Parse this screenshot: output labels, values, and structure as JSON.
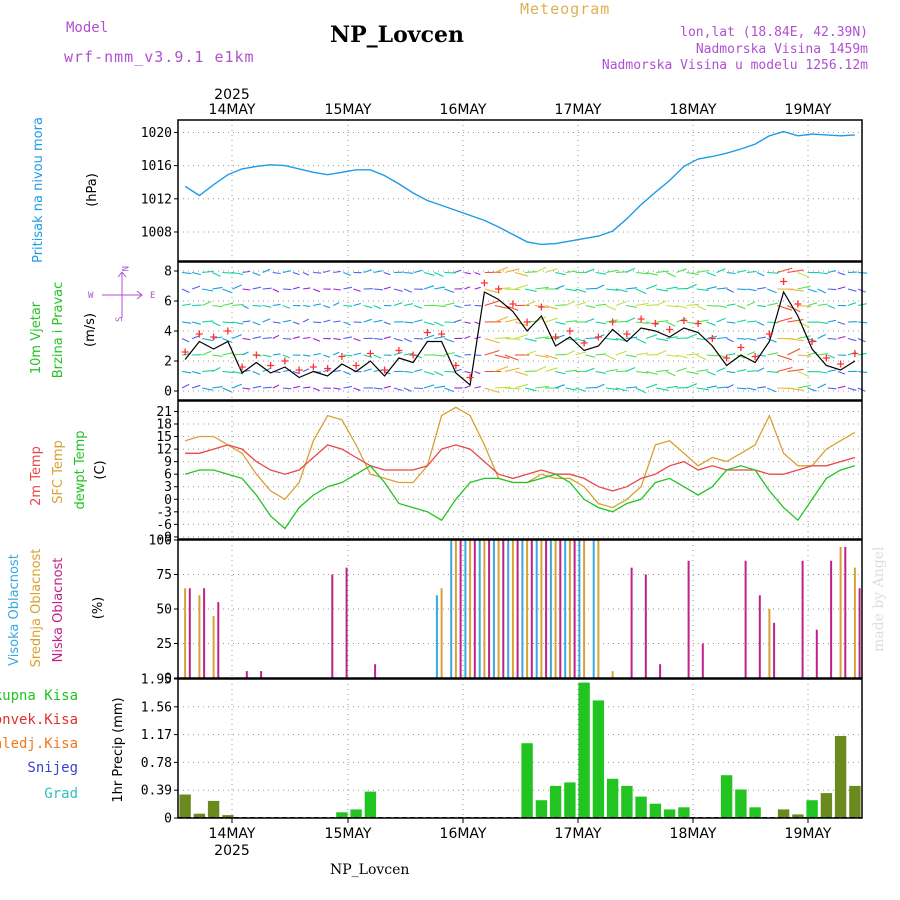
{
  "header": {
    "model_label": "Model",
    "model_name": "wrf-nmm_v3.9.1 e1km",
    "station": "NP_Lovcen",
    "meteogram": "Meteogram",
    "lonlat": "lon,lat (18.84E, 42.39N)",
    "altitude": "Nadmorska Visina 1459m",
    "model_altitude": "Nadmorska Visina u modelu 1256.12m",
    "footer_station": "NP_Lovcen",
    "credit": "made by Angel"
  },
  "colors": {
    "pressure": "#1e9be6",
    "wind_black": "#000000",
    "wind_red": "#ff3030",
    "t2m": "#e84848",
    "tsfc": "#d9a033",
    "dewpt": "#22c422",
    "cloud_high": "#3aa8e0",
    "cloud_mid": "#d9a033",
    "cloud_low": "#c0208a",
    "precip_total": "#22c422",
    "precip_conv": "#e03030",
    "precip_frz": "#f07820",
    "precip_snow": "#4040d0",
    "precip_grad": "#30c0c0",
    "purple": "#b050d0",
    "gold": "#e0b050",
    "grid": "#999999"
  },
  "chart_data": {
    "type": "line",
    "time_axis": {
      "year": "2025",
      "day_labels": [
        "14MAY",
        "15MAY",
        "16MAY",
        "17MAY",
        "18MAY",
        "19MAY"
      ],
      "start": "2025-05-13 13:00",
      "end": "2025-05-19 13:00"
    },
    "panels": [
      {
        "id": "pressure",
        "type": "line",
        "ylabel": [
          "Pritisak na nivou mora",
          "(hPa)"
        ],
        "yticks": [
          1008,
          1012,
          1016,
          1020
        ],
        "ylim": [
          1004.5,
          1021.5
        ],
        "series": [
          {
            "name": "Pritisak na nivou mora",
            "values": [
              1013.5,
              1012.4,
              1013.7,
              1014.9,
              1015.6,
              1015.9,
              1016.1,
              1016.0,
              1015.6,
              1015.2,
              1014.9,
              1015.2,
              1015.5,
              1015.5,
              1014.8,
              1013.8,
              1012.7,
              1011.8,
              1011.2,
              1010.6,
              1010.0,
              1009.4,
              1008.6,
              1007.7,
              1006.8,
              1006.5,
              1006.6,
              1006.9,
              1007.2,
              1007.5,
              1008.1,
              1009.6,
              1011.3,
              1012.8,
              1014.2,
              1015.9,
              1016.8,
              1017.1,
              1017.5,
              1018.0,
              1018.6,
              1019.6,
              1020.1,
              1019.6,
              1019.8,
              1019.7,
              1019.6,
              1019.7
            ]
          }
        ]
      },
      {
        "id": "wind",
        "type": "line",
        "ylabel": [
          "10m Vjetar",
          "Brzina i Pravac",
          "(m/s)"
        ],
        "legend_letters": {
          "n": "N",
          "s": "S",
          "w": "W",
          "e": "E"
        },
        "yticks": [
          0,
          2,
          4,
          6,
          8
        ],
        "ylim": [
          -0.6,
          8.6
        ],
        "series": [
          {
            "name": "wind speed",
            "values": [
              2.1,
              3.3,
              2.8,
              3.3,
              1.2,
              1.9,
              1.2,
              1.6,
              0.9,
              1.3,
              1.0,
              1.8,
              1.3,
              2.0,
              1.0,
              2.2,
              1.9,
              3.3,
              3.3,
              1.2,
              0.4,
              6.6,
              6.1,
              5.3,
              4.0,
              5.0,
              3.0,
              3.6,
              2.7,
              3.0,
              4.1,
              3.3,
              4.2,
              4.0,
              3.6,
              4.2,
              3.9,
              3.0,
              1.7,
              2.4,
              1.9,
              3.3,
              6.6,
              5.0,
              2.8,
              1.7,
              1.4,
              2.0
            ]
          },
          {
            "name": "wind gust",
            "values": [
              2.6,
              3.8,
              3.6,
              4.0,
              1.6,
              2.4,
              1.7,
              2.0,
              1.4,
              1.6,
              1.5,
              2.3,
              1.7,
              2.5,
              1.4,
              2.7,
              2.4,
              3.9,
              3.8,
              1.7,
              0.9,
              7.2,
              6.8,
              5.8,
              4.6,
              5.6,
              3.6,
              4.0,
              3.2,
              3.6,
              4.6,
              3.8,
              4.8,
              4.5,
              4.1,
              4.7,
              4.5,
              3.5,
              2.2,
              2.9,
              2.3,
              3.8,
              7.3,
              5.8,
              3.3,
              2.2,
              1.8,
              2.5
            ]
          }
        ]
      },
      {
        "id": "temperature",
        "type": "line",
        "ylabel": [
          "2m Temp",
          "SFC Temp",
          "dewpt Temp",
          "(C)"
        ],
        "yticks": [
          -9,
          -6,
          -3,
          0,
          3,
          6,
          9,
          12,
          15,
          18,
          21
        ],
        "ylim": [
          -9.5,
          23.5
        ],
        "series": [
          {
            "name": "2m Temp",
            "values": [
              11,
              11,
              12,
              13,
              12,
              9,
              7,
              6,
              7,
              10,
              13,
              12,
              10,
              8,
              7,
              7,
              7,
              8,
              12,
              13,
              12,
              9,
              6,
              5,
              6,
              7,
              6,
              6,
              5,
              3,
              2,
              3,
              5,
              6,
              8,
              9,
              7,
              8,
              7,
              7,
              7,
              6,
              6,
              7,
              8,
              8,
              9,
              10
            ]
          },
          {
            "name": "SFC Temp",
            "values": [
              14,
              15,
              15,
              13,
              11,
              6,
              2,
              0,
              4,
              14,
              20,
              19,
              13,
              6,
              5,
              4,
              4,
              8,
              20,
              22,
              20,
              13,
              5,
              4,
              4,
              6,
              5,
              5,
              3,
              -1,
              -2,
              0,
              3,
              13,
              14,
              11,
              8,
              10,
              9,
              11,
              13,
              20,
              11,
              8,
              8,
              12,
              14,
              16
            ]
          },
          {
            "name": "dewpt Temp",
            "values": [
              6,
              7,
              7,
              6,
              5,
              1,
              -4,
              -7,
              -2,
              1,
              3,
              4,
              6,
              8,
              4,
              -1,
              -2,
              -3,
              -5,
              0,
              4,
              5,
              5,
              4,
              4,
              5,
              6,
              4,
              0,
              -2,
              -3,
              -1,
              0,
              4,
              5,
              3,
              1,
              3,
              7,
              8,
              7,
              2,
              -2,
              -5,
              0,
              5,
              7,
              8
            ]
          }
        ]
      },
      {
        "id": "clouds",
        "type": "bar",
        "ylabel": [
          "Visoka Oblacnost",
          "Srednja Oblacnost",
          "Niska Oblacnost",
          "(%)"
        ],
        "yticks": [
          0,
          25,
          50,
          75,
          100
        ],
        "ylim": [
          0,
          100
        ],
        "series": [
          {
            "name": "Visoka Oblacnost",
            "values": [
              0,
              0,
              0,
              0,
              0,
              0,
              0,
              0,
              0,
              0,
              0,
              0,
              0,
              0,
              0,
              0,
              0,
              0,
              60,
              100,
              100,
              100,
              100,
              100,
              100,
              100,
              100,
              100,
              100,
              100,
              0,
              0,
              0,
              0,
              0,
              0,
              0,
              0,
              0,
              0,
              0,
              0,
              0,
              0,
              0,
              0,
              0,
              0
            ]
          },
          {
            "name": "Srednja Oblacnost",
            "values": [
              65,
              60,
              45,
              0,
              0,
              0,
              0,
              0,
              0,
              0,
              0,
              0,
              0,
              0,
              0,
              0,
              0,
              0,
              65,
              100,
              100,
              100,
              100,
              100,
              100,
              100,
              100,
              100,
              100,
              100,
              5,
              0,
              0,
              0,
              0,
              0,
              0,
              0,
              0,
              0,
              0,
              50,
              0,
              0,
              0,
              0,
              95,
              80
            ]
          },
          {
            "name": "Niska Oblacnost",
            "values": [
              65,
              65,
              55,
              0,
              5,
              5,
              0,
              0,
              0,
              0,
              75,
              80,
              0,
              10,
              0,
              0,
              0,
              0,
              0,
              100,
              100,
              100,
              100,
              100,
              100,
              100,
              100,
              100,
              0,
              0,
              0,
              80,
              75,
              10,
              0,
              85,
              25,
              0,
              0,
              85,
              60,
              40,
              0,
              85,
              35,
              85,
              95,
              65
            ]
          }
        ]
      },
      {
        "id": "precip",
        "type": "bar",
        "ylabel": [
          "1hr Precip (mm)"
        ],
        "legend": [
          "Ukupna Kisa",
          "Konvek.Kisa",
          "Zaledj.Kisa",
          "Snijeg",
          "Grad"
        ],
        "yticks": [
          0,
          0.39,
          0.78,
          1.17,
          1.56,
          1.95
        ],
        "ylim": [
          0,
          1.95
        ],
        "series": [
          {
            "name": "Ukupna Kisa",
            "values": [
              0.33,
              0.06,
              0.24,
              0.04,
              0,
              0,
              0,
              0,
              0,
              0,
              0,
              0.08,
              0.12,
              0.37,
              0,
              0,
              0,
              0,
              0,
              0,
              0,
              0,
              0,
              0,
              1.05,
              0.25,
              0.45,
              0.5,
              1.9,
              1.65,
              0.55,
              0.45,
              0.3,
              0.2,
              0.12,
              0.15,
              0,
              0,
              0.6,
              0.4,
              0.15,
              0,
              0.12,
              0.05,
              0.25,
              0.35,
              1.15,
              0.45
            ]
          },
          {
            "name": "Konvek.Kisa",
            "values": [
              0.33,
              0.06,
              0.24,
              0.04,
              0,
              0,
              0,
              0,
              0,
              0,
              0,
              0,
              0,
              0,
              0,
              0,
              0,
              0,
              0,
              0,
              0,
              0,
              0,
              0,
              0,
              0,
              0,
              0,
              0,
              0,
              0,
              0,
              0,
              0,
              0,
              0,
              0,
              0,
              0,
              0,
              0,
              0,
              0.12,
              0.05,
              0,
              0.35,
              0.85,
              0.45
            ]
          }
        ]
      }
    ]
  }
}
